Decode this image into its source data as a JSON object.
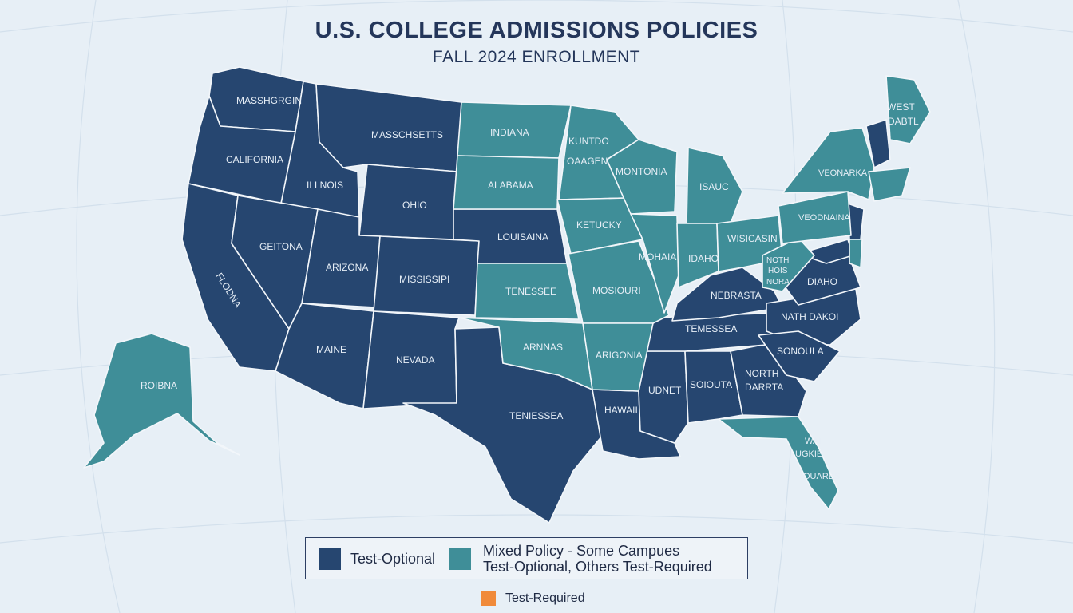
{
  "title": "U.S. COLLEGE ADMISSIONS POLICIES",
  "subtitle": "FALL 2024 ENROLLMENT",
  "colors": {
    "background": "#e7eff6",
    "test_optional": "#264670",
    "mixed": "#3f8e98",
    "test_required": "#f08a3a",
    "title_text": "#24365a"
  },
  "legend": {
    "test_optional": "Test-Optional",
    "mixed_line1": "Mixed Policy - Some Campues",
    "mixed_line2": "Test-Optional, Others Test-Required",
    "test_required": "Test-Required"
  },
  "region_labels": {
    "washington": "MASSHGRGIN",
    "oregon": "CALIFORNIA",
    "idaho": "ILLNOIS",
    "montana": "MASSCHSETTS",
    "wyoming": "OHIO",
    "nevada": "GEITONA",
    "california": "FLODNA",
    "utah": "ARIZONA",
    "colorado": "MISSISSIPI",
    "arizona": "MAINE",
    "new_mexico": "NEVADA",
    "north_dakota": "INDIANA",
    "south_dakota": "ALABAMA",
    "nebraska": "LOUISAINA",
    "kansas": "TENESSEE",
    "oklahoma": "ARNNAS",
    "texas": "TENIESSEA",
    "minnesota_1": "KUNTDO",
    "minnesota_2": "OAAGEN",
    "iowa": "KETUCKY",
    "missouri": "MOSIOURI",
    "arkansas": "ARIGONIA",
    "louisiana": "HAWAII",
    "wisconsin": "MONTONIA",
    "michigan": "ISAUC",
    "illinois": "MOHAIA",
    "indiana": "IDAHO",
    "ohio": "WISICASIN",
    "kentucky": "NEBRASTA",
    "tennessee": "TEMESSEA",
    "mississippi": "UDNET",
    "alabama": "SOIOUTA",
    "georgia_1": "NORTH",
    "georgia_2": "DARRTA",
    "south_carolina": "SONOULA",
    "north_carolina": "NATH DAKOI",
    "virginia": "DIAHO",
    "west_virginia_1": "NOTH",
    "west_virginia_2": "HOIS",
    "west_virginia_3": "NORA",
    "pennsylvania": "VEODNAINA",
    "new_york": "VEONARKA",
    "maine_1": "WEST",
    "maine_2": "DABTL",
    "florida_1": "WAI",
    "florida_2": "UGKIE",
    "florida_3": "OUARES",
    "alaska": "ROIBNA"
  }
}
